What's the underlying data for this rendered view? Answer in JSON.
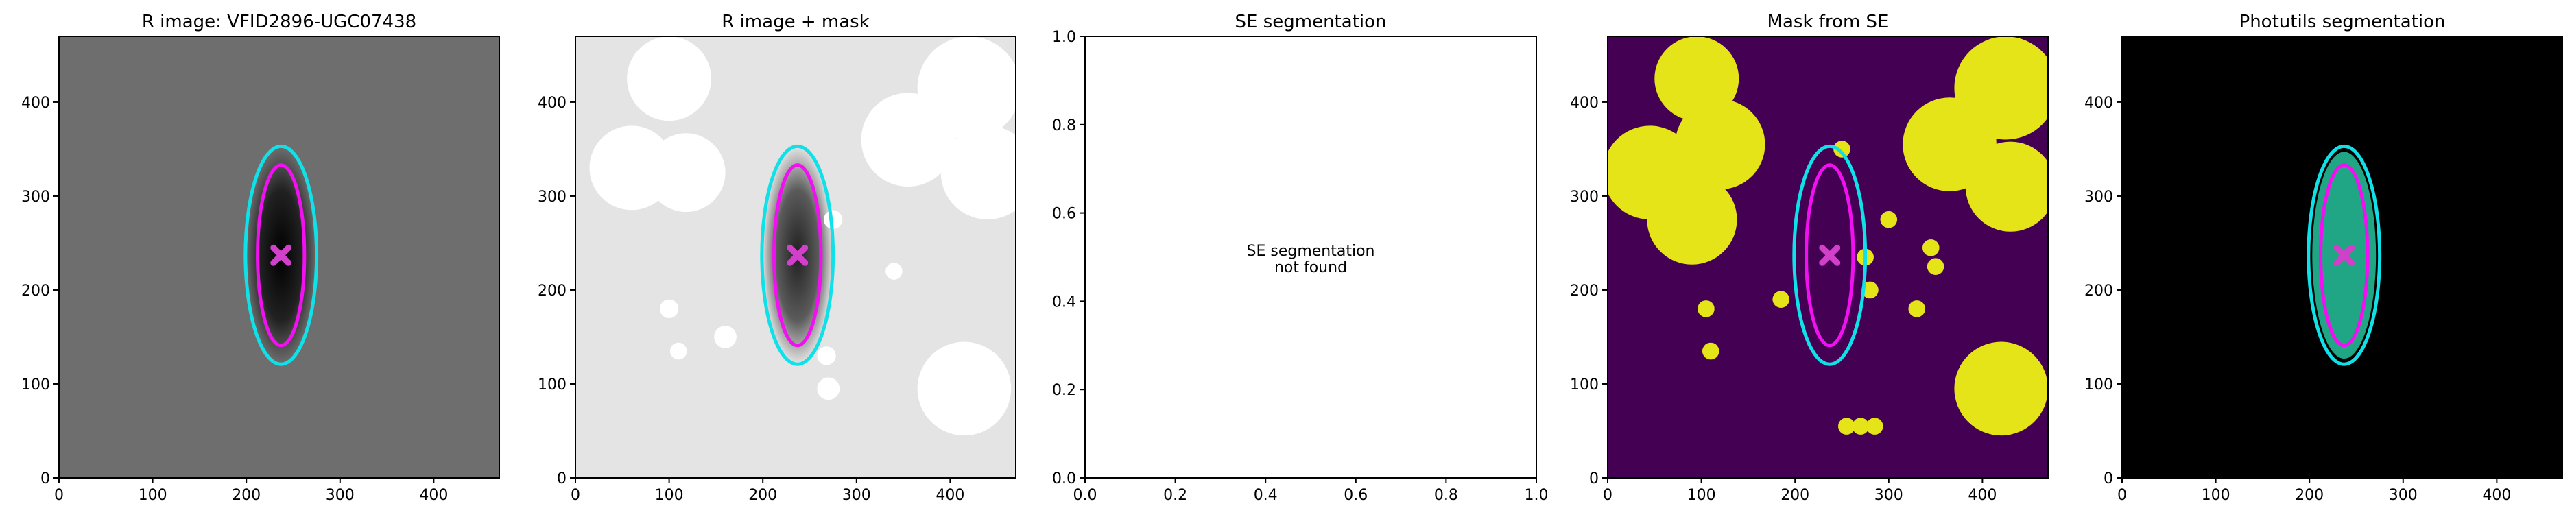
{
  "chart_data": [
    {
      "type": "image",
      "title": "R image: VFID2896-UGC07438",
      "xlim": [
        0,
        470
      ],
      "ylim": [
        0,
        470
      ],
      "xticks": [
        0,
        100,
        200,
        300,
        400
      ],
      "yticks": [
        0,
        100,
        200,
        300,
        400
      ],
      "background": "#6e6e6e",
      "galaxy_color": "#000000",
      "center": [
        237,
        237
      ],
      "center_color": "#d040c8",
      "ellipses": [
        {
          "color": "#10e0e8",
          "cx": 237,
          "cy": 237,
          "rx": 38,
          "ry": 116
        },
        {
          "color": "#f010f0",
          "cx": 237,
          "cy": 237,
          "rx": 25,
          "ry": 96
        }
      ]
    },
    {
      "type": "image",
      "title": "R image + mask",
      "xlim": [
        0,
        470
      ],
      "ylim": [
        0,
        470
      ],
      "xticks": [
        0,
        100,
        200,
        300,
        400
      ],
      "yticks": [
        0,
        100,
        200,
        300,
        400
      ],
      "background": "#e4e4e4",
      "galaxy_color": "#202020",
      "mask_color": "#ffffff",
      "mask_circles": [
        [
          100,
          425,
          45
        ],
        [
          60,
          330,
          45
        ],
        [
          118,
          325,
          42
        ],
        [
          420,
          415,
          55
        ],
        [
          355,
          360,
          50
        ],
        [
          440,
          325,
          50
        ],
        [
          415,
          95,
          50
        ],
        [
          100,
          180,
          10
        ],
        [
          110,
          135,
          9
        ],
        [
          160,
          150,
          12
        ],
        [
          268,
          130,
          10
        ],
        [
          270,
          95,
          12
        ],
        [
          275,
          275,
          10
        ],
        [
          340,
          220,
          9
        ]
      ],
      "center": [
        237,
        237
      ],
      "center_color": "#d040c8",
      "ellipses": [
        {
          "color": "#10e0e8",
          "cx": 237,
          "cy": 237,
          "rx": 38,
          "ry": 116
        },
        {
          "color": "#f010f0",
          "cx": 237,
          "cy": 237,
          "rx": 25,
          "ry": 96
        }
      ]
    },
    {
      "type": "text",
      "title": "SE segmentation",
      "xlim": [
        0,
        1
      ],
      "ylim": [
        0,
        1
      ],
      "xticks": [
        {
          "value": 0,
          "label": "0.0"
        },
        0.2,
        0.4,
        0.6,
        0.8,
        {
          "value": 1,
          "label": "1.0"
        }
      ],
      "yticks": [
        {
          "value": 0,
          "label": "0.0"
        },
        0.2,
        0.4,
        0.6,
        0.8,
        {
          "value": 1,
          "label": "1.0"
        }
      ],
      "annotation": [
        "SE segmentation",
        "not found"
      ]
    },
    {
      "type": "image",
      "title": "Mask from SE",
      "xlim": [
        0,
        470
      ],
      "ylim": [
        0,
        470
      ],
      "xticks": [
        0,
        100,
        200,
        300,
        400
      ],
      "yticks": [
        0,
        100,
        200,
        300,
        400
      ],
      "background": "#440154",
      "mask_color": "#e5e419",
      "mask_circles": [
        [
          95,
          425,
          45
        ],
        [
          45,
          325,
          50
        ],
        [
          120,
          355,
          48
        ],
        [
          90,
          275,
          48
        ],
        [
          425,
          415,
          55
        ],
        [
          365,
          355,
          50
        ],
        [
          430,
          310,
          48
        ],
        [
          420,
          95,
          50
        ],
        [
          105,
          180,
          9
        ],
        [
          110,
          135,
          9
        ],
        [
          185,
          190,
          9
        ],
        [
          275,
          235,
          9
        ],
        [
          280,
          200,
          9
        ],
        [
          300,
          275,
          9
        ],
        [
          345,
          245,
          9
        ],
        [
          350,
          225,
          9
        ],
        [
          330,
          180,
          9
        ],
        [
          255,
          55,
          9
        ],
        [
          270,
          55,
          9
        ],
        [
          285,
          55,
          9
        ],
        [
          250,
          350,
          9
        ]
      ],
      "center": [
        237,
        237
      ],
      "center_color": "#d040c8",
      "ellipses": [
        {
          "color": "#10e0e8",
          "cx": 237,
          "cy": 237,
          "rx": 38,
          "ry": 116
        },
        {
          "color": "#f010f0",
          "cx": 237,
          "cy": 237,
          "rx": 25,
          "ry": 96
        }
      ]
    },
    {
      "type": "image",
      "title": "Photutils segmentation",
      "xlim": [
        0,
        470
      ],
      "ylim": [
        0,
        470
      ],
      "xticks": [
        0,
        100,
        200,
        300,
        400
      ],
      "yticks": [
        0,
        100,
        200,
        300,
        400
      ],
      "background": "#000000",
      "segment": {
        "color": "#20a585",
        "cx": 237,
        "cy": 237,
        "rx": 34,
        "ry": 110
      },
      "center": [
        237,
        237
      ],
      "center_color": "#d040c8",
      "ellipses": [
        {
          "color": "#10e0e8",
          "cx": 237,
          "cy": 237,
          "rx": 38,
          "ry": 116
        },
        {
          "color": "#f010f0",
          "cx": 237,
          "cy": 237,
          "rx": 25,
          "ry": 96
        }
      ]
    }
  ]
}
